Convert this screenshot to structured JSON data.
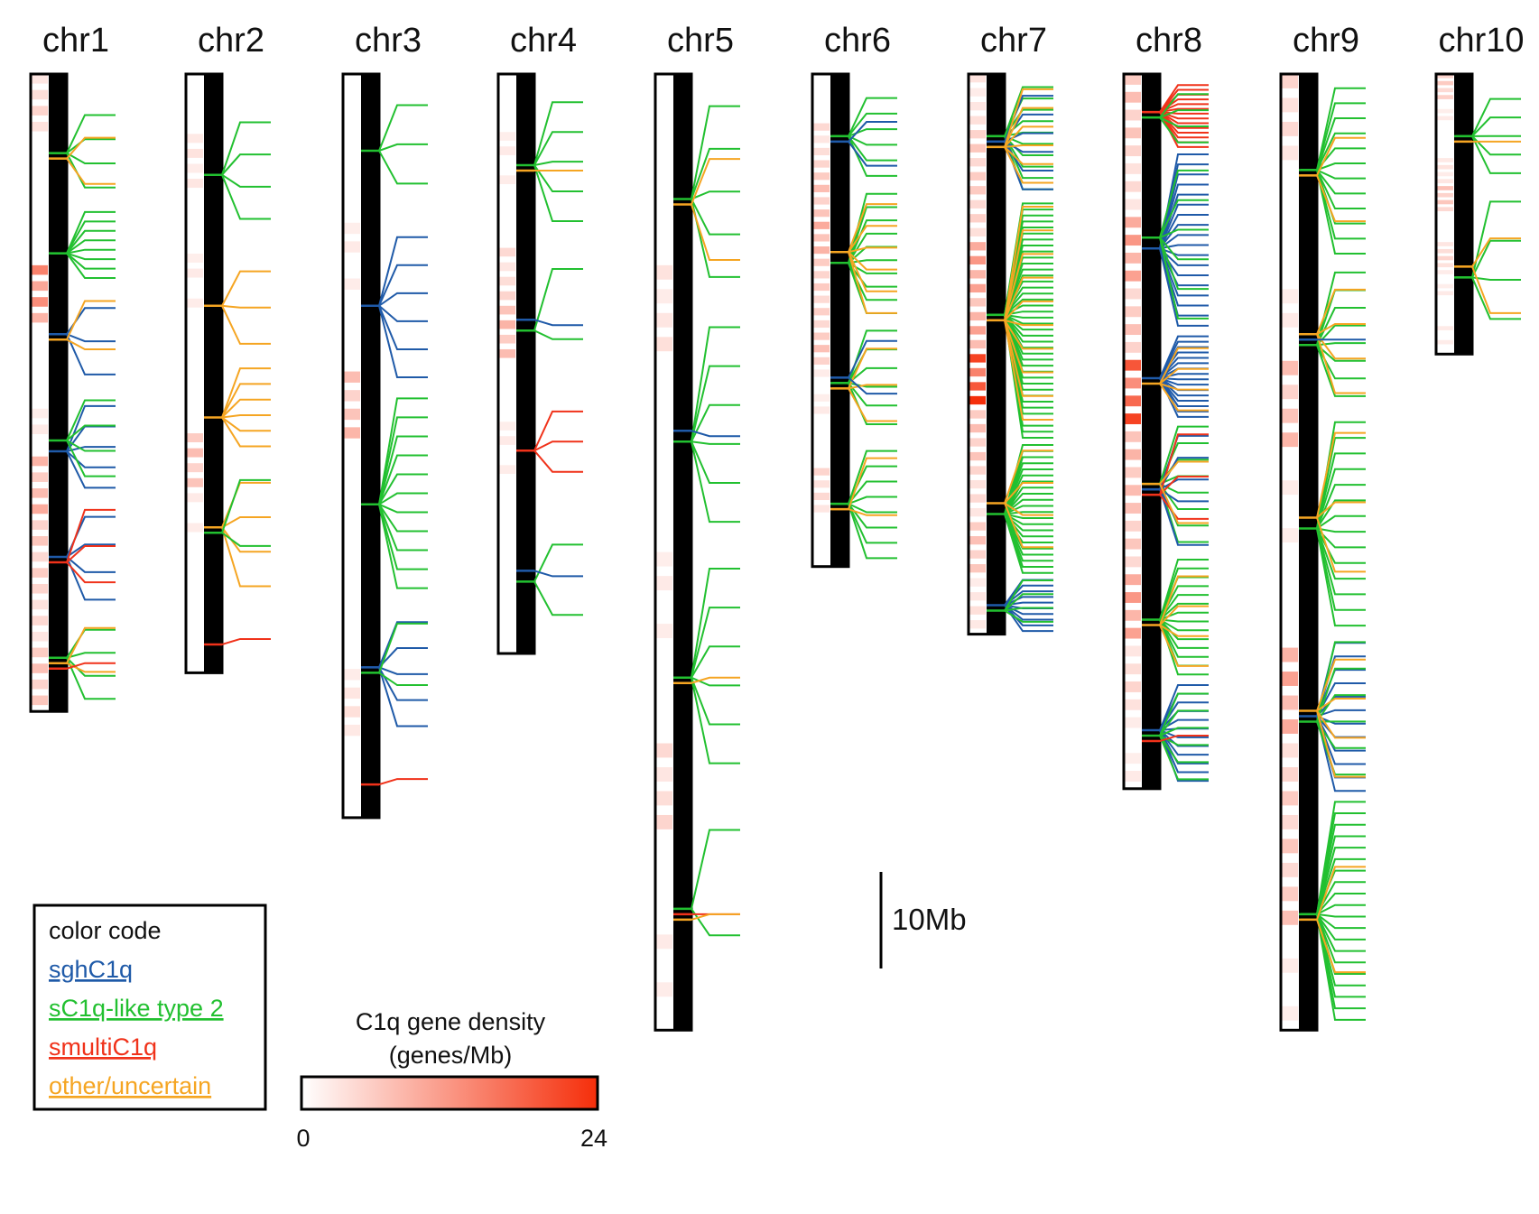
{
  "colors": {
    "sghC1q": "#1f5aa8",
    "sC1q-like type 2": "#22c030",
    "smultiC1q": "#f0321a",
    "other/uncertain": "#f5a522",
    "arm": "#000000",
    "density_low": "#ffffff",
    "density_high": "#f52e0a"
  },
  "chromosomes": [
    {
      "name": "chr1",
      "length_mb": 66,
      "regions": [
        {
          "start": 3.5,
          "end": 14,
          "n": 4,
          "class": "sC1q-like type 2"
        },
        {
          "start": 3.5,
          "end": 14,
          "n": 2,
          "class": "other/uncertain"
        },
        {
          "start": 14,
          "end": 22,
          "n": 8,
          "class": "sC1q-like type 2"
        },
        {
          "start": 22,
          "end": 33,
          "n": 3,
          "class": "sghC1q"
        },
        {
          "start": 22,
          "end": 33,
          "n": 2,
          "class": "other/uncertain"
        },
        {
          "start": 33,
          "end": 44,
          "n": 5,
          "class": "sghC1q"
        },
        {
          "start": 33,
          "end": 44,
          "n": 4,
          "class": "sC1q-like type 2"
        },
        {
          "start": 44,
          "end": 56,
          "n": 4,
          "class": "sghC1q"
        },
        {
          "start": 44,
          "end": 56,
          "n": 3,
          "class": "smultiC1q"
        },
        {
          "start": 56,
          "end": 66,
          "n": 4,
          "class": "sC1q-like type 2"
        },
        {
          "start": 56,
          "end": 66,
          "n": 2,
          "class": "other/uncertain"
        },
        {
          "start": 56,
          "end": 66,
          "n": 1,
          "class": "smultiC1q"
        }
      ]
    },
    {
      "name": "chr2",
      "length_mb": 62,
      "regions": [
        {
          "start": 4,
          "end": 18,
          "n": 4,
          "class": "sC1q-like type 2"
        },
        {
          "start": 18,
          "end": 30,
          "n": 3,
          "class": "other/uncertain"
        },
        {
          "start": 30,
          "end": 40,
          "n": 6,
          "class": "other/uncertain"
        },
        {
          "start": 40,
          "end": 55,
          "n": 4,
          "class": "other/uncertain"
        },
        {
          "start": 40,
          "end": 55,
          "n": 2,
          "class": "sC1q-like type 2"
        },
        {
          "start": 55,
          "end": 62,
          "n": 1,
          "class": "smultiC1q"
        }
      ]
    },
    {
      "name": "chr3",
      "length_mb": 77,
      "regions": [
        {
          "start": 2,
          "end": 15,
          "n": 3,
          "class": "sC1q-like type 2"
        },
        {
          "start": 15,
          "end": 33,
          "n": 6,
          "class": "sghC1q"
        },
        {
          "start": 33,
          "end": 55,
          "n": 11,
          "class": "sC1q-like type 2"
        },
        {
          "start": 55,
          "end": 69,
          "n": 5,
          "class": "sghC1q"
        },
        {
          "start": 55,
          "end": 69,
          "n": 2,
          "class": "sC1q-like type 2"
        },
        {
          "start": 69,
          "end": 77,
          "n": 1,
          "class": "smultiC1q"
        }
      ]
    },
    {
      "name": "chr4",
      "length_mb": 60,
      "regions": [
        {
          "start": 2,
          "end": 18,
          "n": 5,
          "class": "sC1q-like type 2"
        },
        {
          "start": 2,
          "end": 18,
          "n": 1,
          "class": "other/uncertain"
        },
        {
          "start": 18,
          "end": 34,
          "n": 2,
          "class": "sC1q-like type 2"
        },
        {
          "start": 18,
          "end": 34,
          "n": 1,
          "class": "sghC1q"
        },
        {
          "start": 34,
          "end": 44,
          "n": 3,
          "class": "smultiC1q"
        },
        {
          "start": 44,
          "end": 60,
          "n": 2,
          "class": "sC1q-like type 2"
        },
        {
          "start": 44,
          "end": 60,
          "n": 1,
          "class": "sghC1q"
        }
      ]
    },
    {
      "name": "chr5",
      "length_mb": 99,
      "regions": [
        {
          "start": 2,
          "end": 25,
          "n": 5,
          "class": "sC1q-like type 2"
        },
        {
          "start": 2,
          "end": 25,
          "n": 2,
          "class": "other/uncertain"
        },
        {
          "start": 25,
          "end": 50,
          "n": 6,
          "class": "sC1q-like type 2"
        },
        {
          "start": 25,
          "end": 50,
          "n": 1,
          "class": "sghC1q"
        },
        {
          "start": 50,
          "end": 75,
          "n": 6,
          "class": "sC1q-like type 2"
        },
        {
          "start": 50,
          "end": 75,
          "n": 1,
          "class": "other/uncertain"
        },
        {
          "start": 75,
          "end": 99,
          "n": 2,
          "class": "sC1q-like type 2"
        },
        {
          "start": 75,
          "end": 99,
          "n": 1,
          "class": "smultiC1q"
        },
        {
          "start": 75,
          "end": 99,
          "n": 1,
          "class": "other/uncertain"
        }
      ]
    },
    {
      "name": "chr6",
      "length_mb": 51,
      "regions": [
        {
          "start": 2,
          "end": 12,
          "n": 6,
          "class": "sC1q-like type 2"
        },
        {
          "start": 2,
          "end": 12,
          "n": 2,
          "class": "sghC1q"
        },
        {
          "start": 12,
          "end": 26,
          "n": 10,
          "class": "sC1q-like type 2"
        },
        {
          "start": 12,
          "end": 26,
          "n": 6,
          "class": "other/uncertain"
        },
        {
          "start": 26,
          "end": 38,
          "n": 6,
          "class": "sC1q-like type 2"
        },
        {
          "start": 26,
          "end": 38,
          "n": 3,
          "class": "other/uncertain"
        },
        {
          "start": 26,
          "end": 38,
          "n": 2,
          "class": "sghC1q"
        },
        {
          "start": 38,
          "end": 51,
          "n": 8,
          "class": "sC1q-like type 2"
        },
        {
          "start": 38,
          "end": 51,
          "n": 2,
          "class": "other/uncertain"
        }
      ]
    },
    {
      "name": "chr7",
      "length_mb": 58,
      "regions": [
        {
          "start": 1,
          "end": 13,
          "n": 10,
          "class": "sC1q-like type 2"
        },
        {
          "start": 1,
          "end": 13,
          "n": 6,
          "class": "sghC1q"
        },
        {
          "start": 1,
          "end": 13,
          "n": 6,
          "class": "other/uncertain"
        },
        {
          "start": 13,
          "end": 38,
          "n": 40,
          "class": "sC1q-like type 2"
        },
        {
          "start": 13,
          "end": 38,
          "n": 10,
          "class": "other/uncertain"
        },
        {
          "start": 38,
          "end": 52,
          "n": 22,
          "class": "sC1q-like type 2"
        },
        {
          "start": 38,
          "end": 52,
          "n": 4,
          "class": "other/uncertain"
        },
        {
          "start": 52,
          "end": 58,
          "n": 10,
          "class": "sghC1q"
        },
        {
          "start": 52,
          "end": 58,
          "n": 4,
          "class": "sC1q-like type 2"
        }
      ]
    },
    {
      "name": "chr8",
      "length_mb": 74,
      "regions": [
        {
          "start": 1,
          "end": 8,
          "n": 14,
          "class": "smultiC1q"
        },
        {
          "start": 1,
          "end": 8,
          "n": 4,
          "class": "sC1q-like type 2"
        },
        {
          "start": 8,
          "end": 27,
          "n": 18,
          "class": "sghC1q"
        },
        {
          "start": 8,
          "end": 27,
          "n": 6,
          "class": "sC1q-like type 2"
        },
        {
          "start": 27,
          "end": 36,
          "n": 16,
          "class": "sghC1q"
        },
        {
          "start": 27,
          "end": 36,
          "n": 4,
          "class": "other/uncertain"
        },
        {
          "start": 36,
          "end": 50,
          "n": 8,
          "class": "sC1q-like type 2"
        },
        {
          "start": 36,
          "end": 50,
          "n": 6,
          "class": "sghC1q"
        },
        {
          "start": 36,
          "end": 50,
          "n": 3,
          "class": "smultiC1q"
        },
        {
          "start": 36,
          "end": 50,
          "n": 2,
          "class": "other/uncertain"
        },
        {
          "start": 50,
          "end": 63,
          "n": 14,
          "class": "sC1q-like type 2"
        },
        {
          "start": 50,
          "end": 63,
          "n": 4,
          "class": "other/uncertain"
        },
        {
          "start": 63,
          "end": 74,
          "n": 12,
          "class": "sghC1q"
        },
        {
          "start": 63,
          "end": 74,
          "n": 6,
          "class": "sC1q-like type 2"
        },
        {
          "start": 63,
          "end": 74,
          "n": 1,
          "class": "smultiC1q"
        }
      ]
    },
    {
      "name": "chr9",
      "length_mb": 99,
      "regions": [
        {
          "start": 1,
          "end": 20,
          "n": 12,
          "class": "sC1q-like type 2"
        },
        {
          "start": 1,
          "end": 20,
          "n": 2,
          "class": "other/uncertain"
        },
        {
          "start": 20,
          "end": 35,
          "n": 8,
          "class": "sC1q-like type 2"
        },
        {
          "start": 20,
          "end": 35,
          "n": 4,
          "class": "other/uncertain"
        },
        {
          "start": 20,
          "end": 35,
          "n": 1,
          "class": "sghC1q"
        },
        {
          "start": 35,
          "end": 58,
          "n": 14,
          "class": "sC1q-like type 2"
        },
        {
          "start": 35,
          "end": 58,
          "n": 3,
          "class": "other/uncertain"
        },
        {
          "start": 58,
          "end": 75,
          "n": 12,
          "class": "sghC1q"
        },
        {
          "start": 58,
          "end": 75,
          "n": 6,
          "class": "sC1q-like type 2"
        },
        {
          "start": 58,
          "end": 75,
          "n": 4,
          "class": "other/uncertain"
        },
        {
          "start": 75,
          "end": 99,
          "n": 20,
          "class": "sC1q-like type 2"
        },
        {
          "start": 75,
          "end": 99,
          "n": 2,
          "class": "other/uncertain"
        }
      ]
    },
    {
      "name": "chr10",
      "length_mb": 29,
      "regions": [
        {
          "start": 2,
          "end": 12,
          "n": 5,
          "class": "sC1q-like type 2"
        },
        {
          "start": 2,
          "end": 12,
          "n": 1,
          "class": "other/uncertain"
        },
        {
          "start": 12,
          "end": 29,
          "n": 4,
          "class": "sC1q-like type 2"
        },
        {
          "start": 12,
          "end": 29,
          "n": 2,
          "class": "other/uncertain"
        }
      ]
    }
  ],
  "scale_bar": {
    "label": "10Mb",
    "value_mb": 10
  },
  "legend": {
    "title": "color code",
    "entries": [
      {
        "label": "sghC1q",
        "class": "sghC1q"
      },
      {
        "label": "sC1q-like type 2",
        "class": "sC1q-like type 2"
      },
      {
        "label": "smultiC1q",
        "class": "smultiC1q"
      },
      {
        "label": "other/uncertain",
        "class": "other/uncertain"
      }
    ]
  },
  "density_bar": {
    "title_line1": "C1q gene density",
    "title_line2": "(genes/Mb)",
    "min_label": "0",
    "max_label": "24",
    "min": 0,
    "max": 24
  }
}
